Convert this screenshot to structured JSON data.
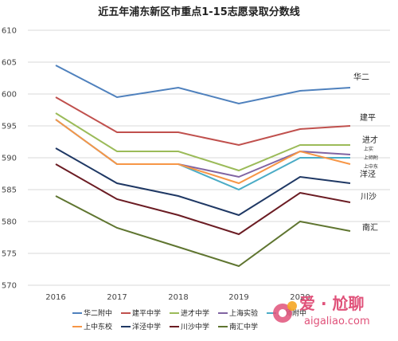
{
  "chart_data": {
    "type": "line",
    "title": "近五年浦东新区市重点1-15志愿录取分数线",
    "x": [
      "2016",
      "2017",
      "2018",
      "2019",
      "2020"
    ],
    "ylim": [
      570,
      610
    ],
    "yticks": [
      "570",
      "575",
      "580",
      "585",
      "590",
      "595",
      "600",
      "605",
      "610"
    ],
    "grid": true,
    "legend_position": "bottom",
    "series": [
      {
        "name": "华二附中",
        "end_label": "华二",
        "color": "#4f81bd",
        "values": [
          604.5,
          599.5,
          601,
          598.5,
          600.5
        ]
      },
      {
        "name": "建平中学",
        "end_label": "建平",
        "color": "#c0504d",
        "values": [
          599.5,
          594,
          594,
          592,
          594.5
        ]
      },
      {
        "name": "进才中学",
        "end_label": "进才",
        "color": "#9bbb59",
        "values": [
          597,
          591,
          591,
          588,
          592
        ]
      },
      {
        "name": "上海实验",
        "end_label": "上实",
        "color": "#8064a2",
        "values": [
          596,
          589,
          589,
          587,
          591
        ]
      },
      {
        "name": "上师附中",
        "end_label": "上师附",
        "color": "#4bacc6",
        "values": [
          596,
          589,
          589,
          585,
          590
        ]
      },
      {
        "name": "上中东校",
        "end_label": "上中东",
        "color": "#f79646",
        "values": [
          596,
          589,
          589,
          586,
          591
        ]
      },
      {
        "name": "洋泾中学",
        "end_label": "洋泾",
        "color": "#1f3864",
        "values": [
          591.5,
          586,
          584,
          581,
          587
        ]
      },
      {
        "name": "川沙中学",
        "end_label": "川沙",
        "color": "#6b1c23",
        "values": [
          589,
          583.5,
          581,
          578,
          584.5
        ]
      },
      {
        "name": "南汇中学",
        "end_label": "南汇",
        "color": "#5f7530",
        "values": [
          584,
          579,
          576,
          573,
          580
        ]
      }
    ]
  },
  "watermark": {
    "brand": "爱 · 尬聊",
    "url": "aigaliao.com"
  }
}
